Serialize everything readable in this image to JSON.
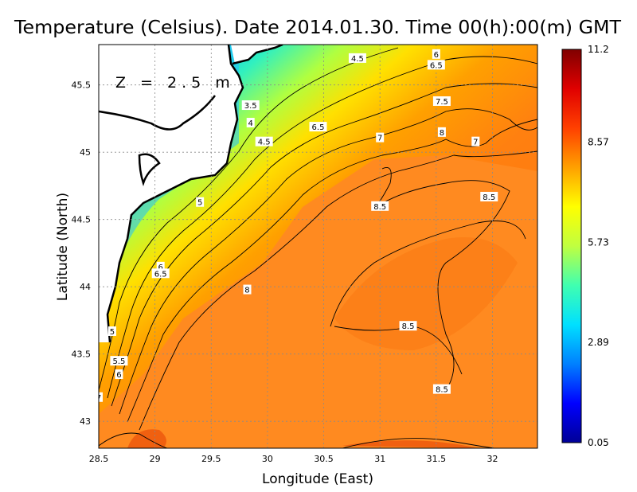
{
  "chart_data": {
    "type": "heatmap",
    "title": "Temperature (Celsius). Date 2014.01.30. Time 00(h):00(m)  GMT",
    "xlabel": "Longitude (East)",
    "ylabel": "Latitude (North)",
    "annotation": "Z = 2.5 m",
    "xlim": [
      28.5,
      32.4
    ],
    "ylim": [
      42.8,
      45.8
    ],
    "x_ticks": [
      "28.5",
      "29",
      "29.5",
      "30",
      "30.5",
      "31",
      "31.5",
      "32"
    ],
    "y_ticks": [
      "43",
      "43.5",
      "44",
      "44.5",
      "45",
      "45.5"
    ],
    "grid": true,
    "colorbar": {
      "min": 0.05,
      "max": 11.2,
      "ticks": [
        "11.2",
        "8.57",
        "5.73",
        "2.89",
        "0.05"
      ],
      "colors": [
        "#000096",
        "#0000ff",
        "#0080ff",
        "#00e0ff",
        "#40ffb0",
        "#c0ff40",
        "#ffff00",
        "#ffa000",
        "#ff4000",
        "#e00000",
        "#800000"
      ]
    },
    "contour_labels": [
      {
        "text": "4.5",
        "lon": 30.8,
        "lat": 45.7
      },
      {
        "text": "6",
        "lon": 31.5,
        "lat": 45.73
      },
      {
        "text": "6.5",
        "lon": 31.5,
        "lat": 45.65
      },
      {
        "text": "3.5",
        "lon": 29.85,
        "lat": 45.35
      },
      {
        "text": "4",
        "lon": 29.85,
        "lat": 45.22
      },
      {
        "text": "6.5",
        "lon": 30.45,
        "lat": 45.19
      },
      {
        "text": "7.5",
        "lon": 31.55,
        "lat": 45.38
      },
      {
        "text": "7",
        "lon": 31.0,
        "lat": 45.11
      },
      {
        "text": "8",
        "lon": 31.55,
        "lat": 45.15
      },
      {
        "text": "7",
        "lon": 31.85,
        "lat": 45.08
      },
      {
        "text": "4.5",
        "lon": 29.97,
        "lat": 45.08
      },
      {
        "text": "5",
        "lon": 29.4,
        "lat": 44.63
      },
      {
        "text": "8.5",
        "lon": 31.97,
        "lat": 44.67
      },
      {
        "text": "8.5",
        "lon": 31.0,
        "lat": 44.6
      },
      {
        "text": "6",
        "lon": 29.05,
        "lat": 44.15
      },
      {
        "text": "6.5",
        "lon": 29.05,
        "lat": 44.1
      },
      {
        "text": "8",
        "lon": 29.82,
        "lat": 43.98
      },
      {
        "text": "8.5",
        "lon": 31.25,
        "lat": 43.71
      },
      {
        "text": "5",
        "lon": 28.62,
        "lat": 43.67
      },
      {
        "text": "5.5",
        "lon": 28.68,
        "lat": 43.45
      },
      {
        "text": "6",
        "lon": 28.68,
        "lat": 43.35
      },
      {
        "text": "8.5",
        "lon": 31.55,
        "lat": 43.24
      },
      {
        "text": "7",
        "lon": 28.5,
        "lat": 43.18
      }
    ]
  }
}
